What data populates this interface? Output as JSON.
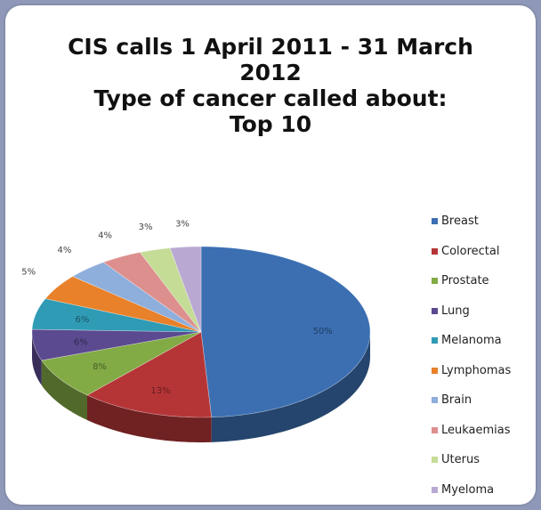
{
  "chart_data": {
    "type": "pie",
    "title_lines": [
      "CIS calls 1 April 2011 - 31 March",
      "2012",
      "Type of cancer called about:",
      "Top 10"
    ],
    "categories": [
      "Breast",
      "Colorectal",
      "Prostate",
      "Lung",
      "Melanoma",
      "Lymphomas",
      "Brain",
      "Leukaemias",
      "Uterus",
      "Myeloma"
    ],
    "values": [
      50,
      13,
      8,
      6,
      6,
      5,
      4,
      4,
      3,
      3
    ],
    "labels": [
      "50%",
      "13%",
      "8%",
      "6%",
      "6%",
      "5%",
      "4%",
      "4%",
      "3%",
      "3%"
    ],
    "colors": [
      "#3b6fb2",
      "#b53537",
      "#82aa45",
      "#5b4a8f",
      "#2f9bb5",
      "#e8812a",
      "#8eaedb",
      "#dd8f8e",
      "#c5dc96",
      "#b9a9d2"
    ],
    "legend_position": "right",
    "style": "3d-tilted"
  }
}
